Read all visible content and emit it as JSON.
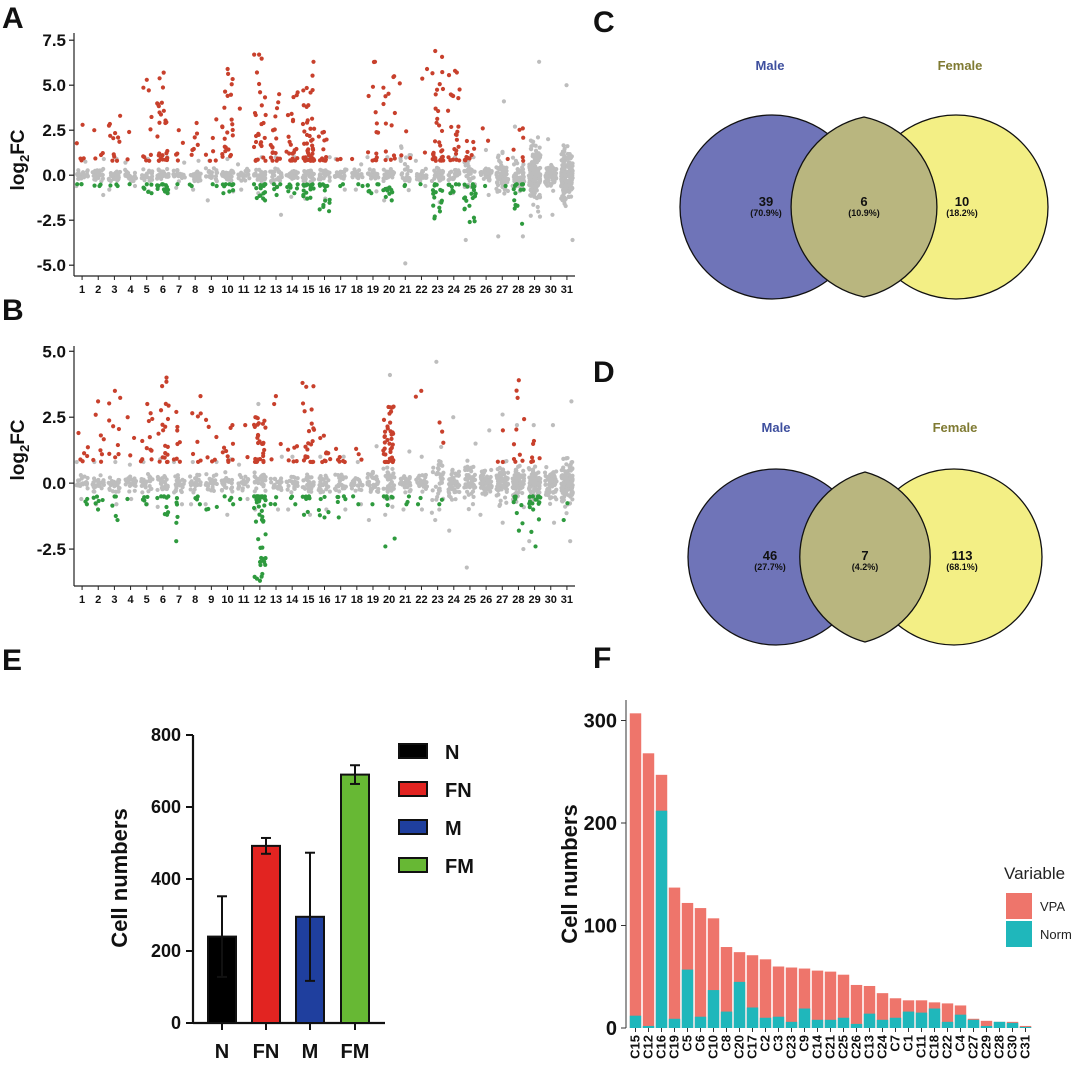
{
  "panels": {
    "A": "A",
    "B": "B",
    "C": "C",
    "D": "D",
    "E": "E",
    "F": "F"
  },
  "colors": {
    "up": "#c8402c",
    "down": "#2e9a3e",
    "ns": "#bdbdbd",
    "male": "#6f74b8",
    "female": "#f3ef85",
    "overlap": "#b9b67f",
    "male_text": "#3e4f9e",
    "female_text": "#7f7a32",
    "vpa": "#ee756b",
    "norm": "#1fb7bb"
  },
  "chart_data": [
    {
      "id": "A",
      "type": "scatter",
      "title": "",
      "ylabel": "log2FC",
      "ylabel_main": "log",
      "ylabel_sub": "2",
      "ylabel_tail": "FC",
      "ylim": [
        -5.6,
        7.9
      ],
      "yticks": [
        7.5,
        5.0,
        2.5,
        0.0,
        -2.5,
        -5.0
      ],
      "ytick_labels": [
        "7.5",
        "5.0",
        "2.5",
        "0.0",
        "-2.5",
        "-5.0"
      ],
      "categories": [
        "1",
        "2",
        "3",
        "4",
        "5",
        "6",
        "7",
        "8",
        "9",
        "10",
        "11",
        "12",
        "13",
        "14",
        "15",
        "16",
        "17",
        "18",
        "19",
        "20",
        "21",
        "22",
        "23",
        "24",
        "25",
        "26",
        "27",
        "28",
        "29",
        "30",
        "31"
      ],
      "clusters": [
        {
          "ns": [
            -0.6,
            0.75
          ],
          "down": -0.5,
          "up": [
            0.8,
            2.8
          ],
          "nd": 3,
          "nu": 5,
          "nn": 14
        },
        {
          "ns": [
            -1.1,
            0.9
          ],
          "down": -0.6,
          "up": [
            0.8,
            2.5
          ],
          "nd": 3,
          "nu": 4,
          "nn": 14
        },
        {
          "ns": [
            -0.8,
            0.9
          ],
          "down": -0.6,
          "up": [
            0.8,
            3.3
          ],
          "nd": 3,
          "nu": 12,
          "nn": 16
        },
        {
          "ns": [
            -0.6,
            0.7
          ],
          "down": -0.5,
          "up": [
            0.8,
            2.4
          ],
          "nd": 1,
          "nu": 2,
          "nn": 10
        },
        {
          "ns": [
            -0.9,
            0.9
          ],
          "down": -1.0,
          "up": [
            0.8,
            5.3
          ],
          "nd": 6,
          "nu": 10,
          "nn": 16
        },
        {
          "ns": [
            -1.0,
            1.0
          ],
          "down": -1.0,
          "up": [
            0.8,
            5.7
          ],
          "nd": 14,
          "nu": 28,
          "nn": 22
        },
        {
          "ns": [
            -0.7,
            0.7
          ],
          "down": -0.5,
          "up": [
            0.8,
            2.5
          ],
          "nd": 1,
          "nu": 5,
          "nn": 12
        },
        {
          "ns": [
            -0.8,
            0.8
          ],
          "down": -0.6,
          "up": [
            0.8,
            2.9
          ],
          "nd": 2,
          "nu": 7,
          "nn": 14
        },
        {
          "ns": [
            -1.4,
            0.8
          ],
          "down": -0.6,
          "up": [
            0.8,
            3.1
          ],
          "nd": 2,
          "nu": 6,
          "nn": 14
        },
        {
          "ns": [
            -0.9,
            0.9
          ],
          "down": -1.0,
          "up": [
            0.8,
            5.9
          ],
          "nd": 10,
          "nu": 24,
          "nn": 18
        },
        {
          "ns": [
            -0.8,
            0.6
          ],
          "down": -0.5,
          "up": [
            0.8,
            3.7
          ],
          "nd": 0,
          "nu": 1,
          "nn": 10
        },
        {
          "ns": [
            -1.0,
            1.0
          ],
          "down": -1.4,
          "up": [
            0.8,
            6.7
          ],
          "nd": 16,
          "nu": 28,
          "nn": 22
        },
        {
          "ns": [
            -2.2,
            1.0
          ],
          "down": -1.1,
          "up": [
            0.8,
            4.5
          ],
          "nd": 6,
          "nu": 18,
          "nn": 18
        },
        {
          "ns": [
            -1.2,
            1.0
          ],
          "down": -1.0,
          "up": [
            0.8,
            4.6
          ],
          "nd": 8,
          "nu": 22,
          "nn": 18
        },
        {
          "ns": [
            -1.3,
            1.0
          ],
          "down": -1.3,
          "up": [
            0.8,
            6.3
          ],
          "nd": 18,
          "nu": 45,
          "nn": 24
        },
        {
          "ns": [
            -1.3,
            1.0
          ],
          "down": -2.0,
          "up": [
            0.8,
            2.4
          ],
          "nd": 14,
          "nu": 12,
          "nn": 18
        },
        {
          "ns": [
            -0.8,
            0.9
          ],
          "down": -0.6,
          "up": [
            0.8,
            0.9
          ],
          "nd": 2,
          "nu": 2,
          "nn": 14
        },
        {
          "ns": [
            -0.8,
            0.6
          ],
          "down": -0.6,
          "up": [
            0.8,
            0.9
          ],
          "nd": 2,
          "nu": 1,
          "nn": 12
        },
        {
          "ns": [
            -0.9,
            1.0
          ],
          "down": -1.0,
          "up": [
            0.8,
            6.3
          ],
          "nd": 7,
          "nu": 14,
          "nn": 16
        },
        {
          "ns": [
            -1.4,
            1.0
          ],
          "down": -1.4,
          "up": [
            0.8,
            5.5
          ],
          "nd": 10,
          "nu": 14,
          "nn": 18
        },
        {
          "ns": [
            -4.9,
            1.6
          ],
          "down": -0.6,
          "up": [
            0.8,
            5.1
          ],
          "nd": 2,
          "nu": 4,
          "nn": 16
        },
        {
          "ns": [
            -0.6,
            0.8
          ],
          "down": -0.5,
          "up": [
            0.8,
            5.9
          ],
          "nd": 1,
          "nu": 3,
          "nn": 14
        },
        {
          "ns": [
            -1.5,
            1.0
          ],
          "down": -2.4,
          "up": [
            0.8,
            6.9
          ],
          "nd": 16,
          "nu": 32,
          "nn": 22
        },
        {
          "ns": [
            -1.0,
            1.0
          ],
          "down": -1.0,
          "up": [
            0.8,
            5.8
          ],
          "nd": 8,
          "nu": 24,
          "nn": 18
        },
        {
          "ns": [
            -3.6,
            1.0
          ],
          "down": -2.6,
          "up": [
            0.8,
            1.9
          ],
          "nd": 20,
          "nu": 10,
          "nn": 22
        },
        {
          "ns": [
            -1.1,
            1.4
          ],
          "down": -0.6,
          "up": [
            0.8,
            2.6
          ],
          "nd": 1,
          "nu": 2,
          "nn": 22
        },
        {
          "ns": [
            -3.4,
            4.1
          ],
          "down": -0.6,
          "up": [
            0.8,
            0.9
          ],
          "nd": 1,
          "nu": 1,
          "nn": 60
        },
        {
          "ns": [
            -3.4,
            2.7
          ],
          "down": -2.7,
          "up": [
            0.8,
            2.6
          ],
          "nd": 14,
          "nu": 6,
          "nn": 40
        },
        {
          "ns": [
            -2.3,
            6.3
          ],
          "down": -0.6,
          "up": [
            0.8,
            0.9
          ],
          "nd": 0,
          "nu": 0,
          "nn": 130
        },
        {
          "ns": [
            -2.2,
            2.0
          ],
          "down": -0.6,
          "up": [
            0.8,
            0.9
          ],
          "nd": 0,
          "nu": 0,
          "nn": 60
        },
        {
          "ns": [
            -3.6,
            5.0
          ],
          "down": -0.6,
          "up": [
            0.8,
            0.9
          ],
          "nd": 0,
          "nu": 0,
          "nn": 170
        }
      ]
    },
    {
      "id": "B",
      "type": "scatter",
      "title": "",
      "ylabel": "log2FC",
      "ylabel_main": "log",
      "ylabel_sub": "2",
      "ylabel_tail": "FC",
      "ylim": [
        -3.9,
        5.2
      ],
      "yticks": [
        5.0,
        2.5,
        0.0,
        -2.5
      ],
      "ytick_labels": [
        "5.0",
        "2.5",
        "0.0",
        "-2.5"
      ],
      "categories": [
        "1",
        "2",
        "3",
        "4",
        "5",
        "6",
        "7",
        "8",
        "9",
        "10",
        "11",
        "12",
        "13",
        "14",
        "15",
        "16",
        "17",
        "18",
        "19",
        "20",
        "21",
        "22",
        "23",
        "24",
        "25",
        "26",
        "27",
        "28",
        "29",
        "30",
        "31"
      ],
      "clusters": [
        {
          "ns": [
            -0.6,
            0.8
          ],
          "down": -0.8,
          "up": [
            0.8,
            1.9
          ],
          "nd": 3,
          "nu": 6,
          "nn": 14
        },
        {
          "ns": [
            -0.8,
            0.8
          ],
          "down": -1.0,
          "up": [
            0.8,
            3.1
          ],
          "nd": 6,
          "nu": 8,
          "nn": 14
        },
        {
          "ns": [
            -0.8,
            0.8
          ],
          "down": -1.4,
          "up": [
            0.8,
            3.5
          ],
          "nd": 5,
          "nu": 10,
          "nn": 16
        },
        {
          "ns": [
            -0.6,
            0.7
          ],
          "down": -0.6,
          "up": [
            0.8,
            2.5
          ],
          "nd": 1,
          "nu": 3,
          "nn": 12
        },
        {
          "ns": [
            -0.8,
            0.8
          ],
          "down": -0.8,
          "up": [
            0.8,
            3.0
          ],
          "nd": 5,
          "nu": 12,
          "nn": 16
        },
        {
          "ns": [
            -0.9,
            0.9
          ],
          "down": -1.2,
          "up": [
            0.8,
            4.0
          ],
          "nd": 10,
          "nu": 20,
          "nn": 20
        },
        {
          "ns": [
            -0.8,
            0.8
          ],
          "down": -2.2,
          "up": [
            0.8,
            2.7
          ],
          "nd": 6,
          "nu": 8,
          "nn": 14
        },
        {
          "ns": [
            -0.8,
            0.8
          ],
          "down": -0.8,
          "up": [
            0.8,
            3.3
          ],
          "nd": 4,
          "nu": 8,
          "nn": 14
        },
        {
          "ns": [
            -0.8,
            0.8
          ],
          "down": -1.0,
          "up": [
            0.8,
            2.4
          ],
          "nd": 3,
          "nu": 6,
          "nn": 14
        },
        {
          "ns": [
            -1.2,
            0.9
          ],
          "down": -0.8,
          "up": [
            0.8,
            2.2
          ],
          "nd": 4,
          "nu": 10,
          "nn": 16
        },
        {
          "ns": [
            -0.6,
            0.7
          ],
          "down": -0.6,
          "up": [
            0.8,
            2.2
          ],
          "nd": 1,
          "nu": 2,
          "nn": 12
        },
        {
          "ns": [
            -1.0,
            3.0
          ],
          "down": -3.7,
          "up": [
            0.8,
            2.5
          ],
          "nd": 45,
          "nu": 30,
          "nn": 22
        },
        {
          "ns": [
            -1.0,
            1.0
          ],
          "down": -0.8,
          "up": [
            0.8,
            3.3
          ],
          "nd": 3,
          "nu": 4,
          "nn": 14
        },
        {
          "ns": [
            -1.0,
            1.0
          ],
          "down": -0.8,
          "up": [
            0.8,
            1.4
          ],
          "nd": 3,
          "nu": 6,
          "nn": 14
        },
        {
          "ns": [
            -1.2,
            1.0
          ],
          "down": -1.2,
          "up": [
            0.8,
            3.8
          ],
          "nd": 8,
          "nu": 22,
          "nn": 18
        },
        {
          "ns": [
            -1.0,
            1.0
          ],
          "down": -1.3,
          "up": [
            0.8,
            1.8
          ],
          "nd": 6,
          "nu": 10,
          "nn": 16
        },
        {
          "ns": [
            -1.0,
            1.0
          ],
          "down": -1.3,
          "up": [
            0.8,
            1.3
          ],
          "nd": 6,
          "nu": 6,
          "nn": 14
        },
        {
          "ns": [
            -0.8,
            0.8
          ],
          "down": -0.8,
          "up": [
            0.8,
            1.3
          ],
          "nd": 2,
          "nu": 3,
          "nn": 14
        },
        {
          "ns": [
            -1.4,
            1.4
          ],
          "down": -0.8,
          "up": [
            0.8,
            0.9
          ],
          "nd": 1,
          "nu": 0,
          "nn": 24
        },
        {
          "ns": [
            -1.2,
            4.1
          ],
          "down": -2.4,
          "up": [
            0.8,
            2.9
          ],
          "nd": 8,
          "nu": 40,
          "nn": 30
        },
        {
          "ns": [
            -1.0,
            1.2
          ],
          "down": -0.8,
          "up": [
            0.8,
            0.9
          ],
          "nd": 3,
          "nu": 0,
          "nn": 22
        },
        {
          "ns": [
            -1.0,
            1.0
          ],
          "down": -0.8,
          "up": [
            0.8,
            3.5
          ],
          "nd": 2,
          "nu": 2,
          "nn": 18
        },
        {
          "ns": [
            -1.4,
            4.6
          ],
          "down": -0.8,
          "up": [
            0.8,
            2.3
          ],
          "nd": 2,
          "nu": 3,
          "nn": 30
        },
        {
          "ns": [
            -1.8,
            2.5
          ],
          "down": -0.8,
          "up": [
            0.8,
            0.9
          ],
          "nd": 0,
          "nu": 0,
          "nn": 40
        },
        {
          "ns": [
            -3.2,
            1.5
          ],
          "down": -0.8,
          "up": [
            0.8,
            0.9
          ],
          "nd": 0,
          "nu": 0,
          "nn": 40
        },
        {
          "ns": [
            -1.2,
            2.0
          ],
          "down": -0.8,
          "up": [
            0.8,
            0.9
          ],
          "nd": 0,
          "nu": 0,
          "nn": 50
        },
        {
          "ns": [
            -1.5,
            2.6
          ],
          "down": -0.8,
          "up": [
            0.8,
            2.0
          ],
          "nd": 0,
          "nu": 3,
          "nn": 60
        },
        {
          "ns": [
            -2.5,
            2.2
          ],
          "down": -1.8,
          "up": [
            0.8,
            3.9
          ],
          "nd": 8,
          "nu": 10,
          "nn": 60
        },
        {
          "ns": [
            -2.2,
            2.2
          ],
          "down": -2.4,
          "up": [
            0.8,
            1.6
          ],
          "nd": 18,
          "nu": 6,
          "nn": 70
        },
        {
          "ns": [
            -1.5,
            2.2
          ],
          "down": -0.8,
          "up": [
            0.8,
            0.9
          ],
          "nd": 0,
          "nu": 0,
          "nn": 60
        },
        {
          "ns": [
            -2.2,
            3.1
          ],
          "down": -1.4,
          "up": [
            0.8,
            0.9
          ],
          "nd": 2,
          "nu": 0,
          "nn": 120
        }
      ]
    },
    {
      "id": "C",
      "type": "venn",
      "title": "",
      "left_label": "Male",
      "right_label": "Female",
      "left_only": "39",
      "left_only_pct": "(70.9%)",
      "overlap": "6",
      "overlap_pct": "(10.9%)",
      "right_only": "10",
      "right_only_pct": "(18.2%)"
    },
    {
      "id": "D",
      "type": "venn",
      "title": "",
      "left_label": "Male",
      "right_label": "Female",
      "left_only": "46",
      "left_only_pct": "(27.7%)",
      "overlap": "7",
      "overlap_pct": "(4.2%)",
      "right_only": "113",
      "right_only_pct": "(68.1%)"
    },
    {
      "id": "E",
      "type": "bar",
      "title": "",
      "xlabel": "",
      "ylabel": "Cell numbers",
      "ylim": [
        0,
        800
      ],
      "yticks": [
        0,
        200,
        400,
        600,
        800
      ],
      "ytick_labels": [
        "0",
        "200",
        "400",
        "600",
        "800"
      ],
      "categories": [
        "N",
        "FN",
        "M",
        "FM"
      ],
      "values": [
        240,
        492,
        295,
        690
      ],
      "errors": [
        112,
        22,
        178,
        26
      ],
      "bar_colors": [
        "#000000",
        "#e22421",
        "#1f3f9e",
        "#67b834"
      ],
      "legend": [
        "N",
        "FN",
        "M",
        "FM"
      ]
    },
    {
      "id": "F",
      "type": "bar",
      "title": "",
      "xlabel": "",
      "ylabel": "Cell numbers",
      "ylim": [
        0,
        320
      ],
      "yticks": [
        0,
        100,
        200,
        300
      ],
      "ytick_labels": [
        "0",
        "100",
        "200",
        "300"
      ],
      "categories": [
        "C15",
        "C12",
        "C16",
        "C19",
        "C5",
        "C6",
        "C10",
        "C8",
        "C20",
        "C17",
        "C2",
        "C3",
        "C23",
        "C9",
        "C14",
        "C21",
        "C25",
        "C26",
        "C13",
        "C24",
        "C7",
        "C1",
        "C11",
        "C18",
        "C22",
        "C4",
        "C27",
        "C29",
        "C28",
        "C30",
        "C31"
      ],
      "legend_title": "Variable",
      "series": [
        {
          "name": "VPA",
          "values": [
            307,
            268,
            247,
            137,
            122,
            117,
            107,
            79,
            74,
            71,
            67,
            60,
            59,
            58,
            56,
            55,
            52,
            42,
            41,
            34,
            29,
            27,
            27,
            25,
            24,
            22,
            9,
            7,
            6,
            6,
            2
          ]
        },
        {
          "name": "Norm",
          "values": [
            12,
            2,
            212,
            9,
            57,
            11,
            37,
            16,
            45,
            20,
            10,
            11,
            6,
            19,
            8,
            8,
            10,
            4,
            14,
            8,
            10,
            16,
            15,
            19,
            6,
            13,
            8,
            2,
            6,
            5,
            1
          ]
        }
      ]
    }
  ]
}
